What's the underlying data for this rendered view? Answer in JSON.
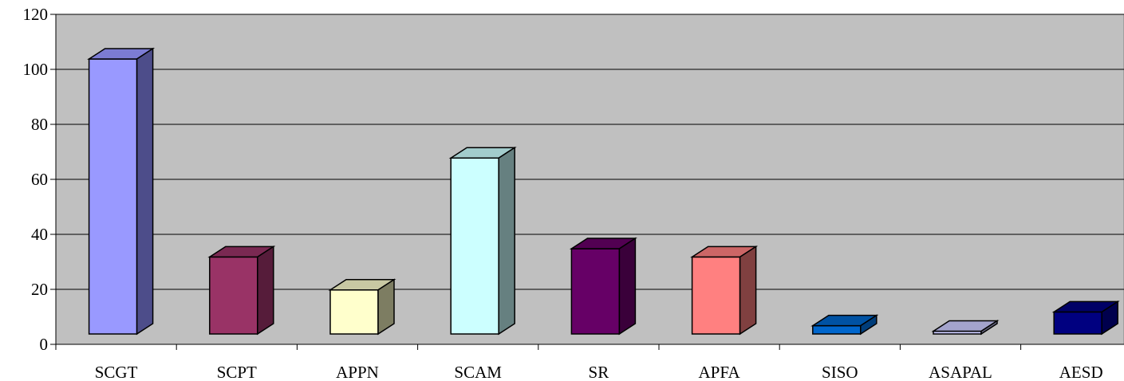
{
  "chart_data": {
    "type": "bar",
    "style": "3d-column",
    "title": "",
    "xlabel": "",
    "ylabel": "",
    "categories": [
      "SCGT",
      "SCPT",
      "APPN",
      "SCAM",
      "SR",
      "APFA",
      "SISO",
      "ASAPAL",
      "AESD"
    ],
    "values": [
      100,
      28,
      16,
      64,
      31,
      28,
      3,
      1,
      8
    ],
    "ylim": [
      0,
      120
    ],
    "yticks": [
      0,
      20,
      40,
      60,
      80,
      100,
      120
    ],
    "grid": true,
    "legend": "none",
    "colors": {
      "plot_background": "#c0c0c0",
      "gridline": "#000000",
      "bar_outline": "#000000",
      "bars": [
        {
          "front": "#9999ff",
          "top": "#7c7cd3",
          "side": "#4d4d8a"
        },
        {
          "front": "#993366",
          "top": "#7a2952",
          "side": "#561c3a"
        },
        {
          "front": "#ffffcc",
          "top": "#c8c8a3",
          "side": "#7d7d62"
        },
        {
          "front": "#ccffff",
          "top": "#a3cccc",
          "side": "#668080"
        },
        {
          "front": "#660066",
          "top": "#520052",
          "side": "#3a003a"
        },
        {
          "front": "#ff8080",
          "top": "#cc6666",
          "side": "#804040"
        },
        {
          "front": "#0066cc",
          "top": "#0052a3",
          "side": "#003d7a"
        },
        {
          "front": "#ccccff",
          "top": "#a3a3cc",
          "side": "#666680"
        },
        {
          "front": "#000080",
          "top": "#000066",
          "side": "#00004d"
        }
      ]
    }
  }
}
